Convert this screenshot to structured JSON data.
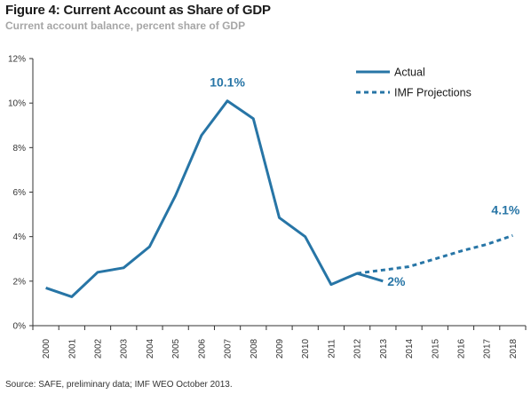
{
  "title": "Figure 4: Current Account as Share of GDP",
  "subtitle": "Current account balance, percent share of GDP",
  "source": "Source: SAFE, preliminary data; IMF WEO October 2013.",
  "colors": {
    "line": "#2775a6",
    "axis": "#333333",
    "subtitle": "#a6a6a6"
  },
  "chart_data": {
    "type": "line",
    "title": "Figure 4: Current Account as Share of GDP",
    "subtitle": "Current account balance, percent share of GDP",
    "xlabel": "",
    "ylabel": "",
    "categories": [
      "2000",
      "2001",
      "2002",
      "2003",
      "2004",
      "2005",
      "2006",
      "2007",
      "2008",
      "2009",
      "2010",
      "2011",
      "2012",
      "2013",
      "2014",
      "2015",
      "2016",
      "2017",
      "2018"
    ],
    "y_ticks": [
      0,
      2,
      4,
      6,
      8,
      10,
      12
    ],
    "y_tick_labels": [
      "0%",
      "2%",
      "4%",
      "6%",
      "8%",
      "10%",
      "12%"
    ],
    "ylim": [
      0,
      12
    ],
    "grid": false,
    "legend_position": "top-right",
    "series": [
      {
        "name": "Actual",
        "style": "solid",
        "x": [
          "2000",
          "2001",
          "2002",
          "2003",
          "2004",
          "2005",
          "2006",
          "2007",
          "2008",
          "2009",
          "2010",
          "2011",
          "2012",
          "2013"
        ],
        "values": [
          1.7,
          1.3,
          2.4,
          2.6,
          3.55,
          5.85,
          8.55,
          10.1,
          9.3,
          4.85,
          4.0,
          1.85,
          2.35,
          2.0
        ]
      },
      {
        "name": "IMF Projections",
        "style": "dashed",
        "x": [
          "2012",
          "2013",
          "2014",
          "2015",
          "2016",
          "2017",
          "2018"
        ],
        "values": [
          2.35,
          2.5,
          2.65,
          3.0,
          3.35,
          3.65,
          4.05
        ]
      }
    ],
    "annotations": [
      {
        "text": "10.1%",
        "x": "2007",
        "y": 10.1
      },
      {
        "text": "2%",
        "x": "2013",
        "y": 2.0
      },
      {
        "text": "4.1%",
        "x": "2018",
        "y": 4.05
      }
    ]
  }
}
